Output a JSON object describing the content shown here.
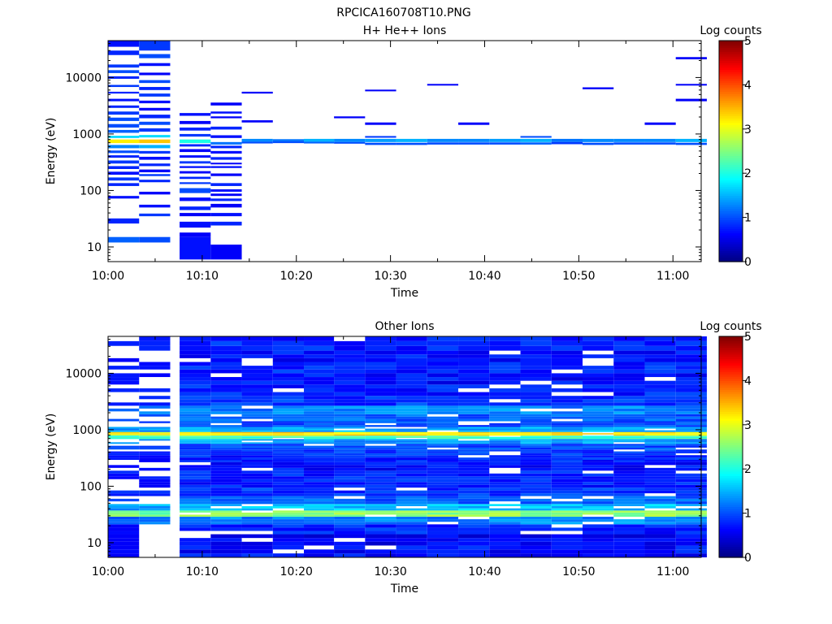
{
  "figure_title": "RPCICA160708T10.PNG",
  "chart_data": [
    {
      "type": "heatmap",
      "title": "H+ He++ Ions",
      "xlabel": "Time",
      "ylabel": "Energy (eV)",
      "x_ticks": [
        "10:00",
        "10:10",
        "10:20",
        "10:30",
        "10:40",
        "10:50",
        "11:00"
      ],
      "xlim_minutes": [
        0,
        63
      ],
      "y_scale": "log",
      "ylim": [
        5.5,
        45000
      ],
      "y_ticks": [
        10,
        100,
        1000,
        10000
      ],
      "y_tick_labels": [
        "10",
        "100",
        "1000",
        "10000"
      ],
      "colorbar": {
        "label": "Log counts",
        "min": 0,
        "max": 5,
        "ticks": [
          "0",
          "1",
          "2",
          "3",
          "4",
          "5"
        ]
      },
      "columns": [
        {
          "t0": 0.0,
          "t1": 3.3,
          "cells": [
            [
              35000,
              45000,
              0.7
            ],
            [
              25000,
              30000,
              0.8
            ],
            [
              15000,
              17000,
              0.9
            ],
            [
              12000,
              13500,
              1.0
            ],
            [
              9500,
              10500,
              0.8
            ],
            [
              6800,
              7400,
              0.9
            ],
            [
              5200,
              5600,
              0.8
            ],
            [
              3800,
              4200,
              0.7
            ],
            [
              2900,
              3200,
              0.8
            ],
            [
              2200,
              2500,
              0.9
            ],
            [
              1700,
              1950,
              1.0
            ],
            [
              1300,
              1500,
              1.0
            ],
            [
              1050,
              1180,
              1.1
            ],
            [
              850,
              930,
              1.7
            ],
            [
              690,
              800,
              3.2
            ],
            [
              560,
              640,
              1.3
            ],
            [
              460,
              510,
              1.0
            ],
            [
              380,
              420,
              0.8
            ],
            [
              300,
              340,
              0.9
            ],
            [
              240,
              270,
              0.8
            ],
            [
              190,
              215,
              0.7
            ],
            [
              150,
              170,
              0.9
            ],
            [
              120,
              135,
              0.8
            ],
            [
              72,
              80,
              0.7
            ],
            [
              26,
              32,
              0.8
            ],
            [
              12,
              15,
              1.1
            ]
          ]
        },
        {
          "t0": 3.3,
          "t1": 6.6,
          "cells": [
            [
              30000,
              45000,
              0.9
            ],
            [
              22000,
              26000,
              1.0
            ],
            [
              16000,
              18000,
              0.7
            ],
            [
              11000,
              12200,
              0.6
            ],
            [
              8000,
              9000,
              1.0
            ],
            [
              6000,
              6800,
              0.8
            ],
            [
              4600,
              5200,
              0.9
            ],
            [
              3500,
              3900,
              0.7
            ],
            [
              2600,
              2900,
              0.6
            ],
            [
              1900,
              2200,
              0.8
            ],
            [
              1450,
              1650,
              1.0
            ],
            [
              1100,
              1260,
              0.9
            ],
            [
              870,
              960,
              1.7
            ],
            [
              690,
              800,
              3.4
            ],
            [
              560,
              640,
              1.5
            ],
            [
              450,
              500,
              0.9
            ],
            [
              350,
              395,
              0.7
            ],
            [
              270,
              300,
              0.8
            ],
            [
              210,
              235,
              0.6
            ],
            [
              180,
              195,
              0.9
            ],
            [
              140,
              155,
              0.8
            ],
            [
              85,
              95,
              0.6
            ],
            [
              50,
              56,
              0.7
            ],
            [
              35,
              39,
              0.9
            ],
            [
              12,
              15,
              1.0
            ]
          ]
        },
        {
          "t0": 7.6,
          "t1": 10.9,
          "cells": [
            [
              2100,
              2350,
              0.7
            ],
            [
              1500,
              1700,
              0.6
            ],
            [
              1150,
              1300,
              0.8
            ],
            [
              900,
              1000,
              0.9
            ],
            [
              690,
              800,
              2.0
            ],
            [
              600,
              660,
              0.8
            ],
            [
              480,
              540,
              0.6
            ],
            [
              380,
              420,
              0.7
            ],
            [
              300,
              330,
              0.9
            ],
            [
              250,
              270,
              0.7
            ],
            [
              200,
              220,
              0.6
            ],
            [
              160,
              175,
              0.8
            ],
            [
              130,
              140,
              0.9
            ],
            [
              90,
              110,
              1.0
            ],
            [
              65,
              75,
              0.7
            ],
            [
              45,
              52,
              0.8
            ],
            [
              35,
              40,
              0.6
            ],
            [
              22,
              28,
              0.7
            ],
            [
              15,
              18,
              0.6
            ],
            [
              6,
              15,
              0.7
            ]
          ]
        },
        {
          "t0": 10.9,
          "t1": 14.2,
          "cells": [
            [
              3200,
              3600,
              0.6
            ],
            [
              2300,
              2500,
              0.7
            ],
            [
              1900,
              2050,
              0.6
            ],
            [
              1200,
              1350,
              0.8
            ],
            [
              850,
              950,
              0.7
            ],
            [
              650,
              720,
              1.2
            ],
            [
              560,
              620,
              0.8
            ],
            [
              450,
              500,
              0.7
            ],
            [
              350,
              390,
              0.8
            ],
            [
              290,
              310,
              0.6
            ],
            [
              250,
              270,
              0.7
            ],
            [
              180,
              200,
              0.6
            ],
            [
              120,
              135,
              0.8
            ],
            [
              95,
              105,
              0.7
            ],
            [
              80,
              88,
              0.6
            ],
            [
              65,
              72,
              0.8
            ],
            [
              50,
              58,
              0.6
            ],
            [
              35,
              40,
              0.7
            ],
            [
              24,
              28,
              0.8
            ],
            [
              6,
              11,
              0.6
            ]
          ]
        },
        {
          "t0": 14.2,
          "t1": 17.5,
          "cells": [
            [
              5200,
              5600,
              0.6
            ],
            [
              1600,
              1750,
              0.6
            ],
            [
              730,
              820,
              1.3
            ],
            [
              680,
              730,
              1.0
            ]
          ]
        },
        {
          "t0": 17.5,
          "t1": 20.8,
          "cells": [
            [
              740,
              810,
              1.2
            ],
            [
              690,
              740,
              1.0
            ]
          ]
        },
        {
          "t0": 20.8,
          "t1": 24.0,
          "cells": [
            [
              730,
              820,
              1.5
            ],
            [
              680,
              730,
              1.1
            ]
          ]
        },
        {
          "t0": 24.0,
          "t1": 27.3,
          "cells": [
            [
              1900,
              2050,
              0.6
            ],
            [
              720,
              820,
              1.3
            ],
            [
              680,
              720,
              1.0
            ]
          ]
        },
        {
          "t0": 27.3,
          "t1": 30.6,
          "cells": [
            [
              5700,
              6100,
              0.6
            ],
            [
              1450,
              1600,
              0.6
            ],
            [
              860,
              920,
              0.9
            ],
            [
              720,
              820,
              1.4
            ],
            [
              640,
              700,
              1.0
            ]
          ]
        },
        {
          "t0": 30.6,
          "t1": 33.9,
          "cells": [
            [
              720,
              820,
              1.5
            ],
            [
              640,
              700,
              1.0
            ]
          ]
        },
        {
          "t0": 33.9,
          "t1": 37.2,
          "cells": [
            [
              7200,
              7700,
              0.6
            ],
            [
              720,
              820,
              1.3
            ],
            [
              650,
              710,
              1.0
            ]
          ]
        },
        {
          "t0": 37.2,
          "t1": 40.5,
          "cells": [
            [
              1450,
              1600,
              0.6
            ],
            [
              720,
              820,
              1.3
            ],
            [
              650,
              710,
              1.0
            ]
          ]
        },
        {
          "t0": 40.5,
          "t1": 43.8,
          "cells": [
            [
              720,
              820,
              1.4
            ],
            [
              650,
              710,
              1.0
            ]
          ]
        },
        {
          "t0": 43.8,
          "t1": 47.1,
          "cells": [
            [
              860,
              920,
              1.0
            ],
            [
              720,
              820,
              1.5
            ],
            [
              650,
              710,
              1.1
            ]
          ]
        },
        {
          "t0": 47.1,
          "t1": 50.4,
          "cells": [
            [
              720,
              820,
              1.2
            ],
            [
              660,
              720,
              0.9
            ]
          ]
        },
        {
          "t0": 50.4,
          "t1": 53.7,
          "cells": [
            [
              6200,
              6700,
              0.6
            ],
            [
              720,
              820,
              1.3
            ],
            [
              640,
              700,
              1.0
            ]
          ]
        },
        {
          "t0": 53.7,
          "t1": 57.0,
          "cells": [
            [
              720,
              820,
              1.3
            ],
            [
              650,
              710,
              1.0
            ]
          ]
        },
        {
          "t0": 57.0,
          "t1": 60.3,
          "cells": [
            [
              1450,
              1600,
              0.6
            ],
            [
              720,
              820,
              1.3
            ],
            [
              650,
              710,
              1.0
            ]
          ]
        },
        {
          "t0": 60.3,
          "t1": 63.6,
          "cells": [
            [
              21000,
              23000,
              0.6
            ],
            [
              7200,
              7700,
              0.6
            ],
            [
              3800,
              4200,
              0.6
            ],
            [
              720,
              820,
              1.5
            ],
            [
              640,
              700,
              1.0
            ]
          ]
        }
      ]
    },
    {
      "type": "heatmap",
      "title": "Other Ions",
      "xlabel": "Time",
      "ylabel": "Energy (eV)",
      "x_ticks": [
        "10:00",
        "10:10",
        "10:20",
        "10:30",
        "10:40",
        "10:50",
        "11:00"
      ],
      "xlim_minutes": [
        0,
        63
      ],
      "y_scale": "log",
      "ylim": [
        5.5,
        45000
      ],
      "y_ticks": [
        10,
        100,
        1000,
        10000
      ],
      "y_tick_labels": [
        "10",
        "100",
        "1000",
        "10000"
      ],
      "colorbar": {
        "label": "Log counts",
        "min": 0,
        "max": 5,
        "ticks": [
          "0",
          "1",
          "2",
          "3",
          "4",
          "5"
        ]
      },
      "profile": {
        "energies_log10_center": [
          0.85,
          1.05,
          1.25,
          1.4,
          1.52,
          1.62,
          1.75,
          1.9,
          2.05,
          2.2,
          2.35,
          2.5,
          2.6,
          2.7,
          2.8,
          2.87,
          2.92,
          3.0,
          3.1,
          3.2,
          3.35,
          3.5,
          3.7,
          3.9,
          4.1,
          4.3,
          4.5
        ],
        "baseline_values": [
          0.7,
          0.6,
          0.8,
          1.3,
          2.6,
          1.6,
          1.1,
          0.9,
          0.8,
          0.8,
          0.7,
          0.8,
          0.9,
          1.0,
          1.4,
          2.2,
          3.3,
          1.5,
          1.0,
          1.1,
          1.3,
          0.9,
          0.8,
          0.7,
          0.8,
          0.7,
          0.8
        ]
      },
      "columns_t": [
        [
          0,
          3.3
        ],
        [
          3.3,
          6.6
        ],
        [
          7.6,
          10.9
        ],
        [
          10.9,
          14.2
        ],
        [
          14.2,
          17.5
        ],
        [
          17.5,
          20.8
        ],
        [
          20.8,
          24.0
        ],
        [
          24.0,
          27.3
        ],
        [
          27.3,
          30.6
        ],
        [
          30.6,
          33.9
        ],
        [
          33.9,
          37.2
        ],
        [
          37.2,
          40.5
        ],
        [
          40.5,
          43.8
        ],
        [
          43.8,
          47.1
        ],
        [
          47.1,
          50.4
        ],
        [
          50.4,
          53.7
        ],
        [
          53.7,
          57.0
        ],
        [
          57.0,
          60.3
        ],
        [
          60.3,
          63.6
        ]
      ]
    }
  ]
}
